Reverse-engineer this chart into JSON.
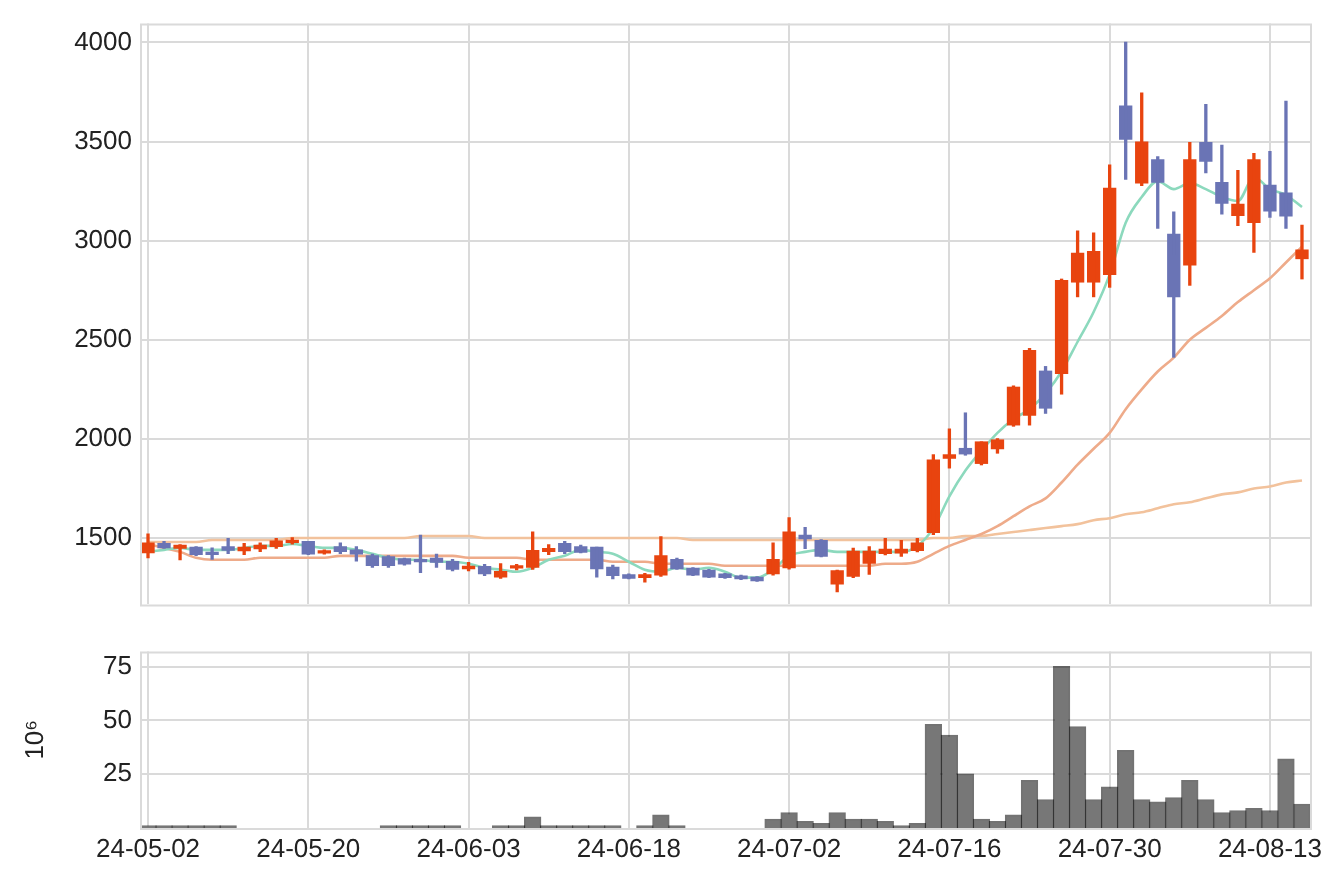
{
  "chart_data": [
    {
      "type": "candlestick",
      "categories": [
        null,
        null,
        null,
        null,
        null,
        null,
        null,
        null,
        null,
        null,
        null,
        null,
        null,
        null,
        null,
        null,
        null,
        null,
        null,
        null,
        null,
        null,
        null,
        null,
        null,
        null,
        null,
        null,
        null,
        null,
        null,
        null,
        null,
        null,
        null,
        null,
        null,
        null,
        null,
        null,
        null,
        null,
        null,
        null,
        null,
        null,
        null,
        null,
        null,
        null,
        null,
        null,
        null,
        null,
        null,
        null,
        null,
        null,
        null,
        null,
        null,
        null,
        null,
        null,
        null,
        null,
        null,
        null,
        null,
        null,
        null,
        null,
        null
      ],
      "ohlc": [
        [
          1426,
          1519,
          1401,
          1474
        ],
        [
          1471,
          1481,
          1449,
          1452
        ],
        [
          1449,
          1465,
          1391,
          1462
        ],
        [
          1452,
          1455,
          1413,
          1417
        ],
        [
          1423,
          1449,
          1394,
          1417
        ],
        [
          1455,
          1497,
          1423,
          1439
        ],
        [
          1436,
          1471,
          1417,
          1452
        ],
        [
          1446,
          1474,
          1433,
          1462
        ],
        [
          1458,
          1497,
          1449,
          1484
        ],
        [
          1478,
          1500,
          1471,
          1487
        ],
        [
          1481,
          1481,
          1417,
          1420
        ],
        [
          1425,
          1439,
          1420,
          1429
        ],
        [
          1455,
          1474,
          1423,
          1433
        ],
        [
          1439,
          1455,
          1385,
          1420
        ],
        [
          1410,
          1417,
          1353,
          1362
        ],
        [
          1404,
          1410,
          1353,
          1362
        ],
        [
          1394,
          1397,
          1365,
          1369
        ],
        [
          1391,
          1513,
          1327,
          1381
        ],
        [
          1397,
          1417,
          1353,
          1378
        ],
        [
          1381,
          1391,
          1336,
          1343
        ],
        [
          1346,
          1375,
          1336,
          1352
        ],
        [
          1356,
          1365,
          1311,
          1320
        ],
        [
          1304,
          1369,
          1298,
          1330
        ],
        [
          1349,
          1365,
          1340,
          1356
        ],
        [
          1353,
          1529,
          1343,
          1436
        ],
        [
          1433,
          1465,
          1417,
          1446
        ],
        [
          1471,
          1481,
          1423,
          1433
        ],
        [
          1455,
          1462,
          1426,
          1429
        ],
        [
          1452,
          1452,
          1304,
          1346
        ],
        [
          1352,
          1362,
          1295,
          1311
        ],
        [
          1314,
          1317,
          1295,
          1298
        ],
        [
          1301,
          1320,
          1279,
          1314
        ],
        [
          1314,
          1506,
          1308,
          1410
        ],
        [
          1391,
          1397,
          1343,
          1346
        ],
        [
          1346,
          1349,
          1311,
          1314
        ],
        [
          1336,
          1340,
          1301,
          1304
        ],
        [
          1317,
          1320,
          1298,
          1301
        ],
        [
          1308,
          1311,
          1292,
          1295
        ],
        [
          1301,
          1304,
          1282,
          1285
        ],
        [
          1320,
          1474,
          1314,
          1391
        ],
        [
          1351,
          1601,
          1344,
          1529
        ],
        [
          1513,
          1552,
          1448,
          1497
        ],
        [
          1487,
          1490,
          1406,
          1409
        ],
        [
          1269,
          1337,
          1230,
          1334
        ],
        [
          1308,
          1448,
          1302,
          1432
        ],
        [
          1373,
          1455,
          1318,
          1432
        ],
        [
          1422,
          1497,
          1416,
          1442
        ],
        [
          1425,
          1487,
          1409,
          1442
        ],
        [
          1438,
          1497,
          1432,
          1474
        ],
        [
          1529,
          1919,
          1519,
          1893
        ],
        [
          1903,
          2049,
          1854,
          1919
        ],
        [
          1951,
          2130,
          1919,
          1925
        ],
        [
          1877,
          1984,
          1870,
          1984
        ],
        [
          1951,
          2000,
          1929,
          1994
        ],
        [
          2071,
          2266,
          2065,
          2260
        ],
        [
          2120,
          2455,
          2071,
          2445
        ],
        [
          2341,
          2364,
          2130,
          2156
        ],
        [
          2331,
          2805,
          2227,
          2798
        ],
        [
          2792,
          3048,
          2718,
          2936
        ],
        [
          2792,
          3038,
          2718,
          2945
        ],
        [
          2830,
          3381,
          2766,
          3263
        ],
        [
          3679,
          4000,
          3311,
          3513
        ],
        [
          3292,
          3744,
          3279,
          3497
        ],
        [
          3407,
          3423,
          3064,
          3295
        ],
        [
          3032,
          3144,
          2413,
          2718
        ],
        [
          2878,
          3494,
          2776,
          3407
        ],
        [
          3494,
          3686,
          3343,
          3401
        ],
        [
          3292,
          3481,
          3135,
          3189
        ],
        [
          3128,
          3353,
          3077,
          3183
        ],
        [
          3093,
          3439,
          2942,
          3407
        ],
        [
          3279,
          3449,
          3119,
          3151
        ],
        [
          3240,
          3702,
          3064,
          3125
        ],
        [
          2910,
          3077,
          2808,
          2952
        ]
      ],
      "colors": [
        "#e8440f",
        "#6a74b5",
        "#e8440f",
        "#6a74b5",
        "#6a74b5",
        "#6a74b5",
        "#e8440f",
        "#e8440f",
        "#e8440f",
        "#e8440f",
        "#6a74b5",
        "#e8440f",
        "#6a74b5",
        "#6a74b5",
        "#6a74b5",
        "#6a74b5",
        "#6a74b5",
        "#6a74b5",
        "#6a74b5",
        "#6a74b5",
        "#e8440f",
        "#6a74b5",
        "#e8440f",
        "#e8440f",
        "#e8440f",
        "#e8440f",
        "#6a74b5",
        "#6a74b5",
        "#6a74b5",
        "#6a74b5",
        "#6a74b5",
        "#e8440f",
        "#e8440f",
        "#6a74b5",
        "#6a74b5",
        "#6a74b5",
        "#6a74b5",
        "#6a74b5",
        "#6a74b5",
        "#e8440f",
        "#e8440f",
        "#6a74b5",
        "#6a74b5",
        "#e8440f",
        "#e8440f",
        "#e8440f",
        "#e8440f",
        "#e8440f",
        "#e8440f",
        "#e8440f",
        "#e8440f",
        "#6a74b5",
        "#e8440f",
        "#e8440f",
        "#e8440f",
        "#e8440f",
        "#6a74b5",
        "#e8440f",
        "#e8440f",
        "#e8440f",
        "#e8440f",
        "#6a74b5",
        "#e8440f",
        "#6a74b5",
        "#6a74b5",
        "#e8440f",
        "#6a74b5",
        "#6a74b5",
        "#e8440f",
        "#e8440f",
        "#6a74b5",
        "#6a74b5",
        "#e8440f"
      ],
      "series": [
        {
          "type": "line",
          "color": "#8cd9bd",
          "values": [
            1430,
            1440,
            1450,
            1440,
            1440,
            1440,
            1450,
            1460,
            1460,
            1470,
            1460,
            1450,
            1450,
            1440,
            1420,
            1400,
            1390,
            1390,
            1380,
            1380,
            1370,
            1350,
            1340,
            1330,
            1350,
            1390,
            1410,
            1440,
            1430,
            1420,
            1380,
            1340,
            1330,
            1350,
            1340,
            1350,
            1330,
            1300,
            1300,
            1340,
            1410,
            1430,
            1440,
            1430,
            1430,
            1430,
            1430,
            1430,
            1460,
            1550,
            1710,
            1840,
            1940,
            2030,
            2100,
            2150,
            2230,
            2340,
            2490,
            2640,
            2830,
            3090,
            3220,
            3300,
            3260,
            3290,
            3260,
            3220,
            3200,
            3320,
            3260,
            3230,
            3170
          ]
        },
        {
          "type": "line",
          "color": "#eeab8a",
          "values": [
            1470,
            1450,
            1430,
            1400,
            1390,
            1390,
            1390,
            1400,
            1400,
            1400,
            1400,
            1400,
            1410,
            1410,
            1410,
            1410,
            1410,
            1410,
            1410,
            1410,
            1400,
            1400,
            1400,
            1400,
            1390,
            1390,
            1390,
            1390,
            1390,
            1380,
            1380,
            1380,
            1370,
            1370,
            1370,
            1370,
            1360,
            1360,
            1360,
            1360,
            1360,
            1360,
            1360,
            1360,
            1360,
            1360,
            1370,
            1370,
            1380,
            1420,
            1460,
            1490,
            1520,
            1560,
            1610,
            1660,
            1700,
            1780,
            1870,
            1950,
            2030,
            2150,
            2250,
            2340,
            2410,
            2500,
            2560,
            2620,
            2690,
            2750,
            2810,
            2890,
            2970
          ]
        },
        {
          "type": "line",
          "color": "#f2c29c",
          "values": [
            1480,
            1480,
            1480,
            1480,
            1490,
            1490,
            1490,
            1490,
            1490,
            1500,
            1500,
            1500,
            1500,
            1500,
            1500,
            1500,
            1500,
            1510,
            1510,
            1510,
            1510,
            1500,
            1500,
            1500,
            1500,
            1500,
            1500,
            1500,
            1500,
            1500,
            1500,
            1500,
            1500,
            1500,
            1490,
            1490,
            1490,
            1490,
            1490,
            1490,
            1490,
            1490,
            1490,
            1490,
            1490,
            1490,
            1490,
            1490,
            1490,
            1500,
            1500,
            1510,
            1510,
            1520,
            1530,
            1540,
            1550,
            1560,
            1570,
            1590,
            1600,
            1620,
            1630,
            1650,
            1670,
            1680,
            1700,
            1720,
            1730,
            1750,
            1760,
            1780,
            1790
          ]
        }
      ],
      "ylim": [
        1165,
        4095
      ],
      "yticks": [
        1500,
        2000,
        2500,
        3000,
        3500,
        4000
      ],
      "grid": true,
      "tick_labels": "y"
    },
    {
      "type": "bar",
      "categories": [
        "24-05-02",
        null,
        null,
        null,
        null,
        null,
        null,
        null,
        null,
        null,
        "24-05-20",
        null,
        null,
        null,
        null,
        null,
        null,
        null,
        null,
        null,
        "24-06-03",
        null,
        null,
        null,
        null,
        null,
        null,
        null,
        null,
        null,
        "24-06-18",
        null,
        null,
        null,
        null,
        null,
        null,
        null,
        null,
        null,
        "24-07-02",
        null,
        null,
        null,
        null,
        null,
        null,
        null,
        null,
        null,
        "24-07-16",
        null,
        null,
        null,
        null,
        null,
        null,
        null,
        null,
        null,
        "24-07-30",
        null,
        null,
        null,
        null,
        null,
        null,
        null,
        null,
        null,
        "24-08-13",
        null,
        null
      ],
      "values": [
        1,
        1,
        1,
        1,
        1,
        1,
        0,
        0,
        0,
        0,
        0,
        0,
        0,
        0,
        0,
        1,
        1,
        1,
        1,
        1,
        0,
        0,
        1,
        1,
        5,
        1,
        1,
        1,
        1,
        1,
        0,
        1,
        6,
        1,
        0,
        0,
        0,
        0,
        0,
        4,
        7,
        3,
        2,
        7,
        4,
        4,
        3,
        1,
        2,
        48,
        43,
        25,
        4,
        3,
        6,
        22,
        13,
        75,
        47,
        13,
        19,
        36,
        13,
        12,
        14,
        22,
        13,
        7,
        8,
        9,
        8,
        32,
        11
      ],
      "color": "#777777",
      "ylabel": "10⁶",
      "ylim": [
        0,
        82
      ],
      "yticks": [
        25,
        50,
        75
      ],
      "grid": true
    }
  ]
}
